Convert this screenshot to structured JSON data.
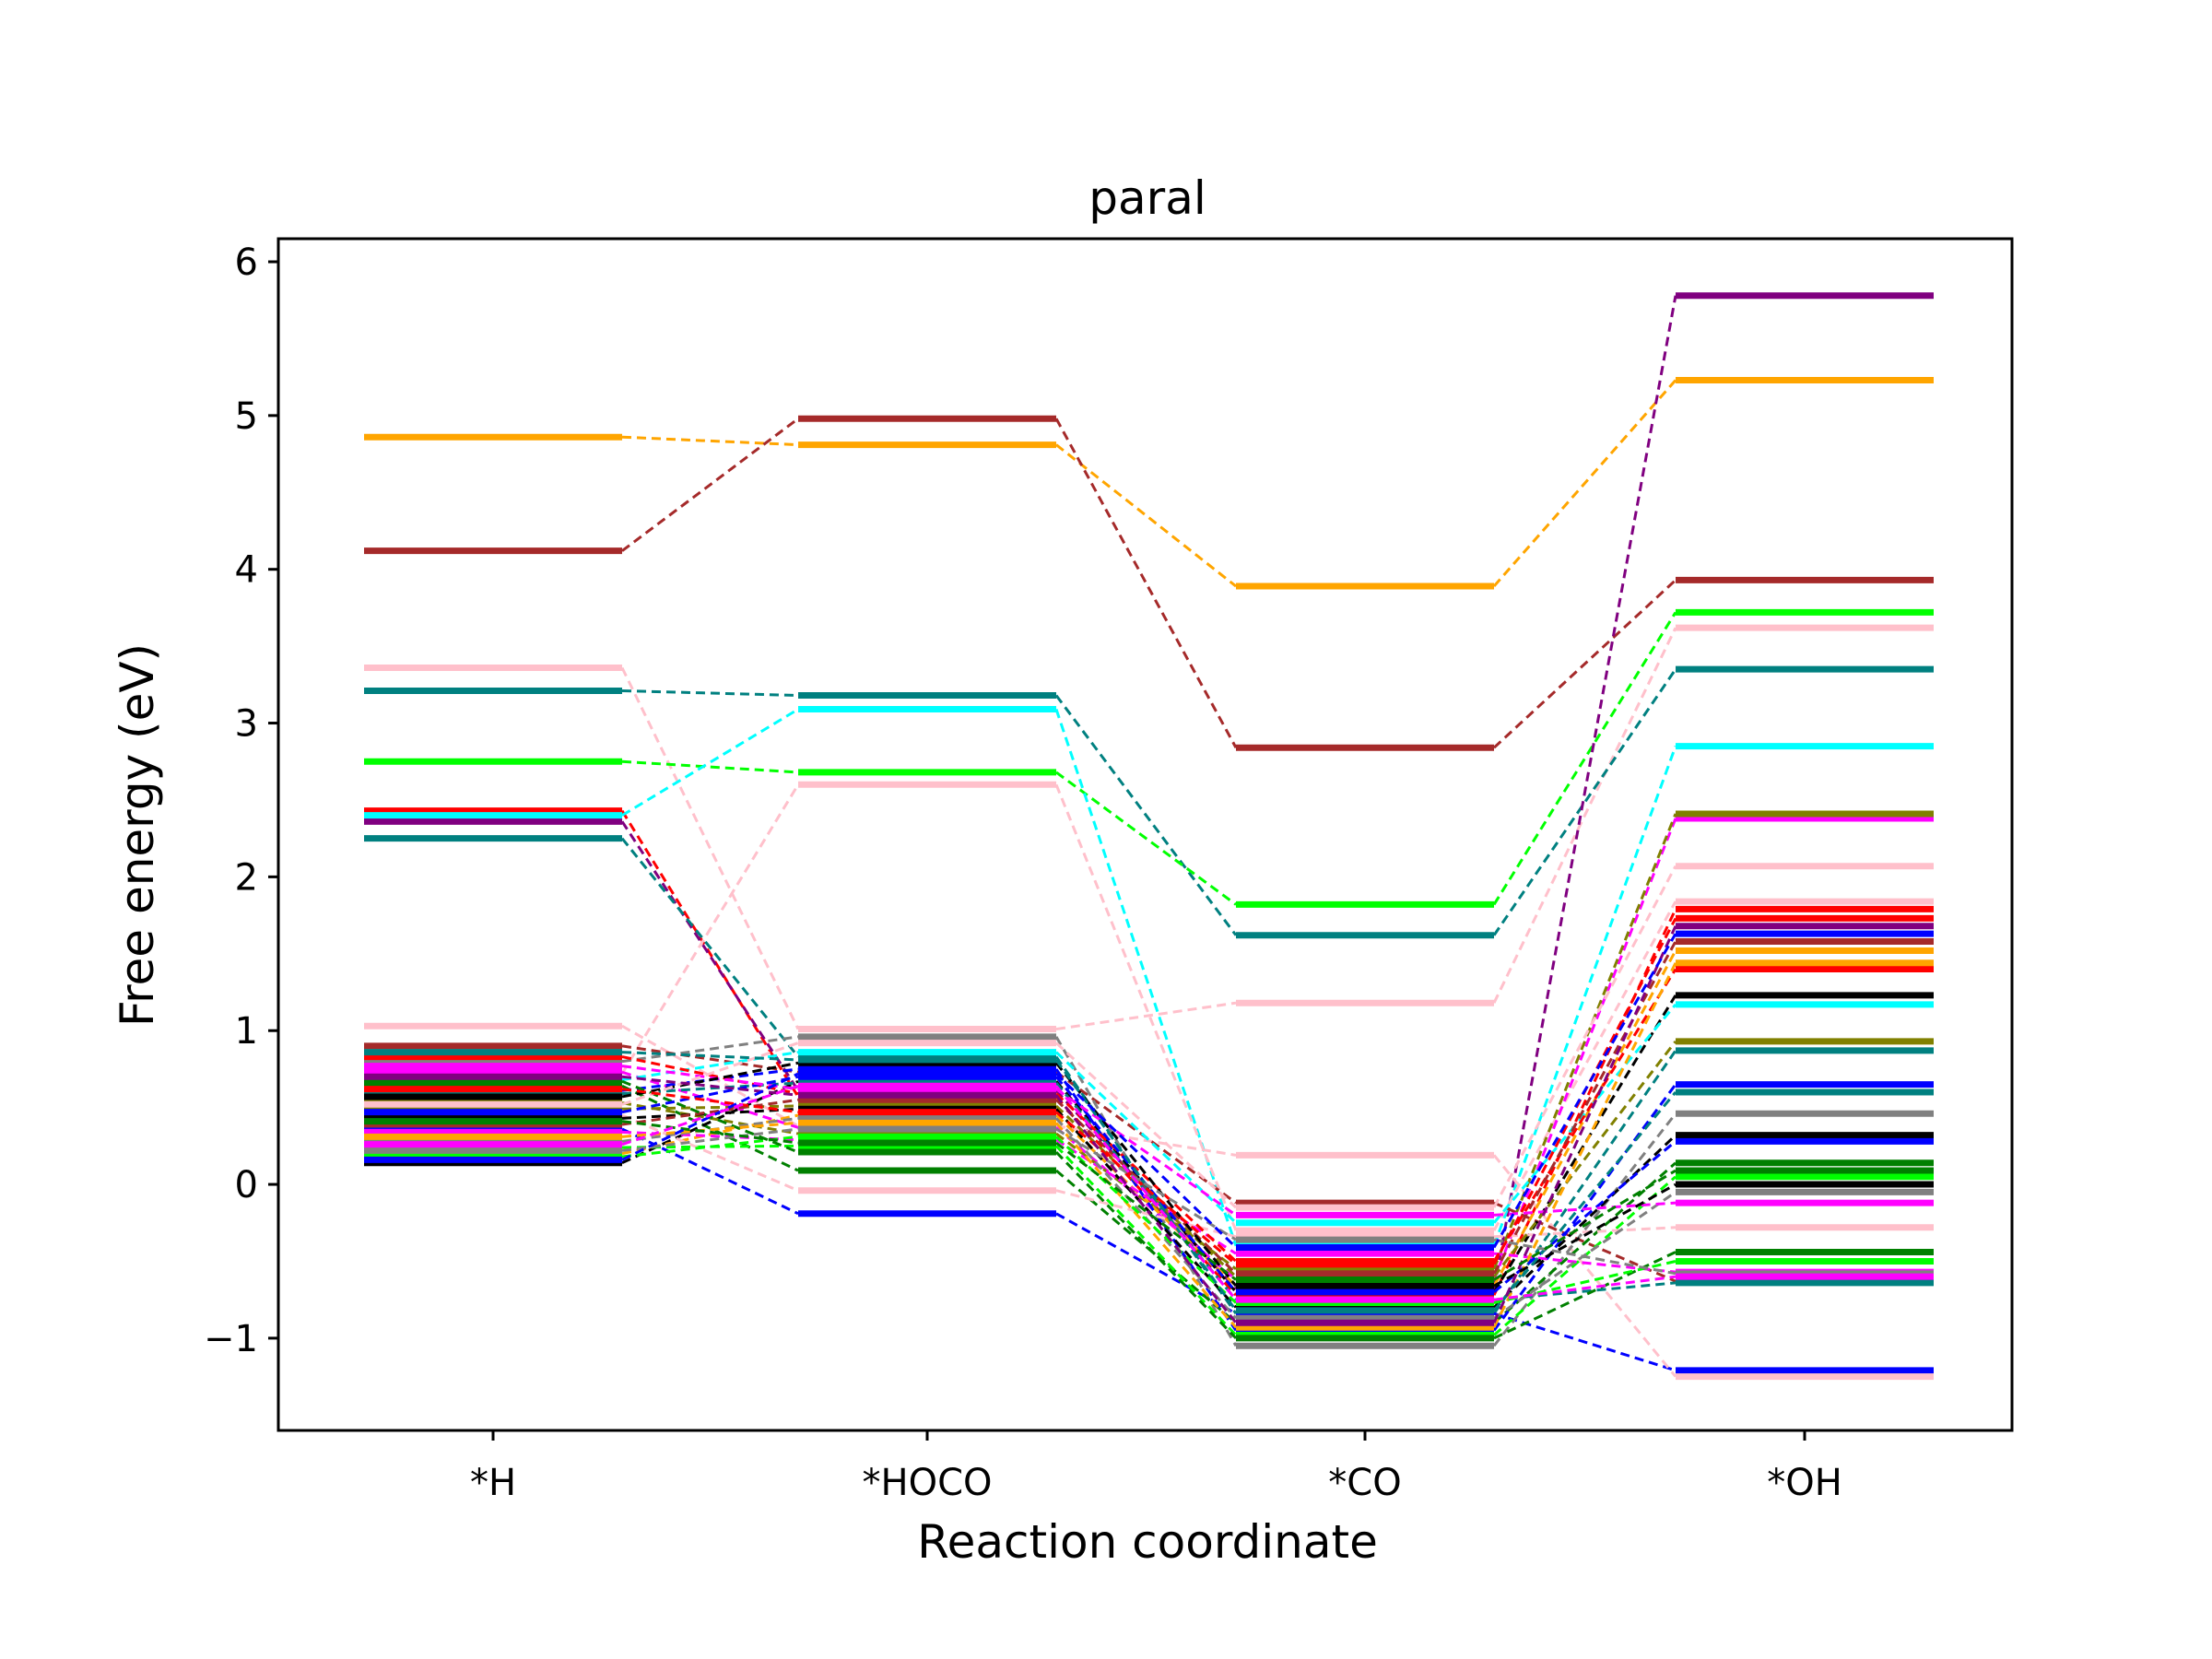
{
  "chart_data": {
    "type": "line",
    "title": "paral",
    "xlabel": "Reaction coordinate",
    "ylabel": "Free energy (eV)",
    "categories": [
      "*H",
      "*HOCO",
      "*CO",
      "*OH"
    ],
    "ylim": [
      -1.6,
      6.15
    ],
    "yticks": [
      -1,
      0,
      1,
      2,
      3,
      4,
      5,
      6
    ],
    "ytick_labels": [
      "−1",
      "0",
      "1",
      "2",
      "3",
      "4",
      "5",
      "6"
    ],
    "grid": false,
    "legend": "none",
    "series": [
      {
        "color": "#FFA500",
        "values": [
          4.86,
          4.81,
          3.89,
          5.23
        ]
      },
      {
        "color": "#A52A2A",
        "values": [
          4.12,
          4.98,
          2.84,
          3.93
        ]
      },
      {
        "color": "#FFC0CB",
        "values": [
          3.36,
          1.01,
          1.18,
          3.62
        ]
      },
      {
        "color": "#008080",
        "values": [
          3.21,
          3.18,
          1.62,
          3.35
        ]
      },
      {
        "color": "#00FF00",
        "values": [
          2.75,
          2.68,
          1.82,
          3.72
        ]
      },
      {
        "color": "#FF0000",
        "values": [
          2.43,
          0.57,
          -0.72,
          1.79
        ]
      },
      {
        "color": "#800080",
        "values": [
          2.36,
          0.61,
          -0.68,
          5.78
        ]
      },
      {
        "color": "#00FFFF",
        "values": [
          2.4,
          3.09,
          -0.4,
          2.85
        ]
      },
      {
        "color": "#008080",
        "values": [
          2.25,
          0.83,
          -0.84,
          0.87
        ]
      },
      {
        "color": "#FFC0CB",
        "values": [
          0.72,
          2.6,
          -0.3,
          1.84
        ]
      },
      {
        "color": "#0000FF",
        "values": [
          0.36,
          -0.19,
          -0.84,
          -1.21
        ]
      },
      {
        "color": "#FFC0CB",
        "values": [
          1.03,
          0.38,
          0.19,
          -1.25
        ]
      },
      {
        "color": "#A52A2A",
        "values": [
          0.9,
          0.73,
          -0.12,
          -0.63
        ]
      },
      {
        "color": "#808080",
        "values": [
          0.8,
          0.96,
          -1.05,
          0.46
        ]
      },
      {
        "color": "#008000",
        "values": [
          0.64,
          0.09,
          -0.9,
          0.14
        ]
      },
      {
        "color": "#FF00FF",
        "values": [
          0.73,
          0.37,
          -0.62,
          2.38
        ]
      },
      {
        "color": "#000000",
        "values": [
          0.14,
          0.67,
          -0.7,
          1.23
        ]
      },
      {
        "color": "#808000",
        "values": [
          0.53,
          0.33,
          -0.55,
          2.41
        ]
      },
      {
        "color": "#FFA500",
        "values": [
          0.2,
          0.45,
          -0.66,
          1.52
        ]
      },
      {
        "color": "#0000FF",
        "values": [
          0.61,
          0.75,
          -0.95,
          0.65
        ]
      },
      {
        "color": "#00FF00",
        "values": [
          0.24,
          0.25,
          -0.98,
          0.05
        ]
      },
      {
        "color": "#FFC0CB",
        "values": [
          0.45,
          -0.04,
          -0.34,
          -0.28
        ]
      },
      {
        "color": "#808000",
        "values": [
          0.49,
          0.51,
          -0.6,
          0.93
        ]
      },
      {
        "color": "#000000",
        "values": [
          0.43,
          0.49,
          -0.8,
          0.32
        ]
      },
      {
        "color": "#00FFFF",
        "values": [
          0.68,
          0.86,
          -0.25,
          1.17
        ]
      },
      {
        "color": "#FF00FF",
        "values": [
          0.34,
          0.29,
          -0.45,
          -0.57
        ]
      },
      {
        "color": "#008080",
        "values": [
          0.59,
          0.66,
          -0.75,
          -0.64
        ]
      },
      {
        "color": "#FF0000",
        "values": [
          0.83,
          0.59,
          -0.5,
          1.4
        ]
      },
      {
        "color": "#A52A2A",
        "values": [
          0.39,
          0.55,
          -0.58,
          1.58
        ]
      },
      {
        "color": "#808080",
        "values": [
          0.28,
          0.43,
          -0.87,
          -0.05
        ]
      },
      {
        "color": "#008000",
        "values": [
          0.67,
          0.21,
          -1.0,
          -0.44
        ]
      },
      {
        "color": "#0000FF",
        "values": [
          0.47,
          0.7,
          -0.7,
          0.28
        ]
      },
      {
        "color": "#FF00FF",
        "values": [
          0.77,
          0.62,
          -0.2,
          -0.12
        ]
      },
      {
        "color": "#FFA500",
        "values": [
          0.31,
          0.4,
          -0.93,
          1.44
        ]
      },
      {
        "color": "#000000",
        "values": [
          0.57,
          0.79,
          -0.66,
          0.0
        ]
      },
      {
        "color": "#00FF00",
        "values": [
          0.18,
          0.31,
          -0.77,
          -0.5
        ]
      },
      {
        "color": "#FFC0CB",
        "values": [
          0.52,
          0.92,
          -0.15,
          2.07
        ]
      },
      {
        "color": "#008080",
        "values": [
          0.86,
          0.81,
          -0.82,
          0.6
        ]
      },
      {
        "color": "#FF0000",
        "values": [
          0.62,
          0.47,
          -0.52,
          1.73
        ]
      },
      {
        "color": "#808080",
        "values": [
          0.22,
          0.36,
          -0.36,
          -0.58
        ]
      },
      {
        "color": "#800080",
        "values": [
          0.7,
          0.58,
          -0.9,
          1.68
        ]
      },
      {
        "color": "#008000",
        "values": [
          0.41,
          0.27,
          -0.62,
          0.09
        ]
      },
      {
        "color": "#0000FF",
        "values": [
          0.16,
          0.72,
          -0.41,
          1.63
        ]
      },
      {
        "color": "#FF00FF",
        "values": [
          0.26,
          0.64,
          -0.75,
          -0.6
        ]
      }
    ]
  }
}
